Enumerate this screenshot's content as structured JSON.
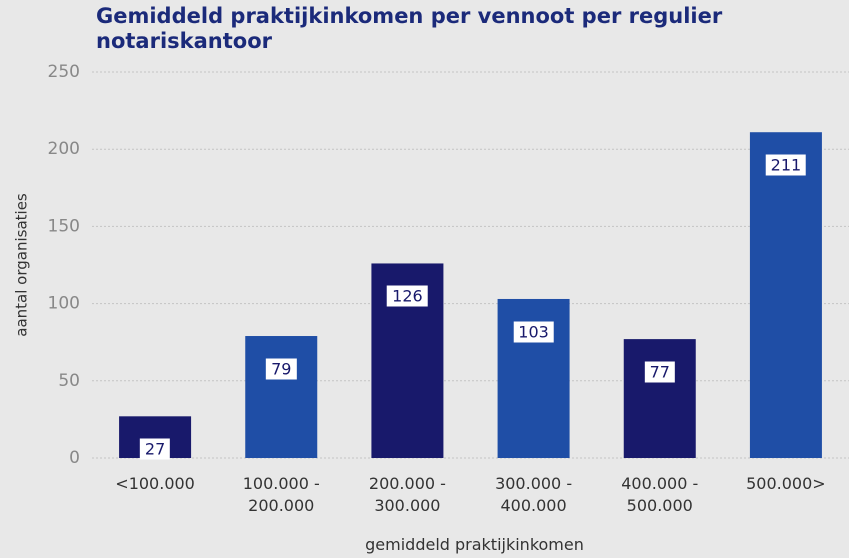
{
  "chart_data": {
    "type": "bar",
    "title": "Gemiddeld praktijkinkomen per vennoot per regulier notariskantoor",
    "x_label": "gemiddeld praktijkinkomen",
    "y_label": "aantal organisaties",
    "categories": [
      "<100.000",
      "100.000 - 200.000",
      "200.000 - 300.000",
      "300.000 - 400.000",
      "400.000 - 500.000",
      "500.000>"
    ],
    "values": [
      27,
      79,
      126,
      103,
      77,
      211
    ],
    "colors": [
      "#18196b",
      "#1f4ea6",
      "#18196b",
      "#1f4ea6",
      "#18196b",
      "#1f4ea6"
    ],
    "ylim": [
      0,
      250
    ],
    "yticks": [
      0,
      50,
      100,
      150,
      200,
      250
    ],
    "grid": true
  }
}
